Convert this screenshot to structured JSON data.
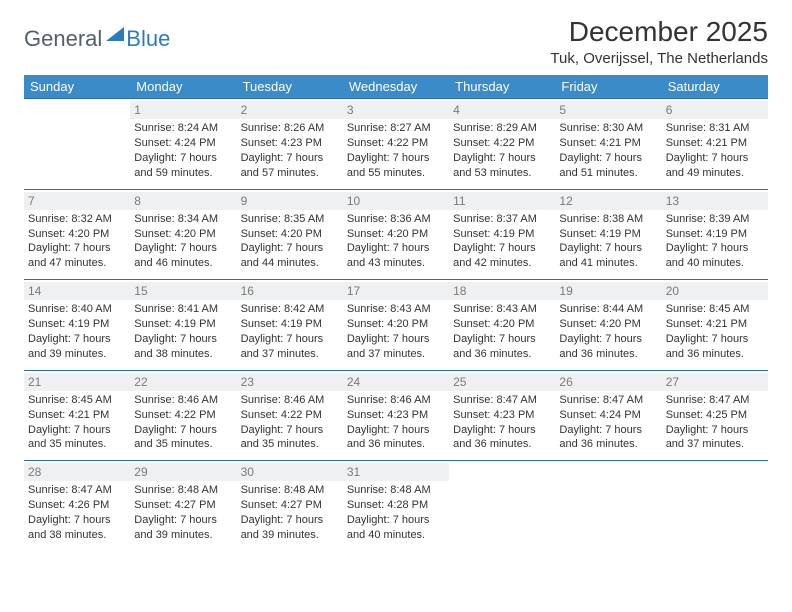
{
  "brand": {
    "part1": "General",
    "part2": "Blue"
  },
  "title": "December 2025",
  "location": "Tuk, Overijssel, The Netherlands",
  "day_headers": [
    "Sunday",
    "Monday",
    "Tuesday",
    "Wednesday",
    "Thursday",
    "Friday",
    "Saturday"
  ],
  "colors": {
    "header_bg": "#3b8bc9",
    "header_text": "#ffffff",
    "cell_border": "#2b6da8",
    "daynum_bg": "#eef0f2",
    "daynum_text": "#7a7a7a",
    "body_text": "#333333",
    "brand_gray": "#555f6a",
    "brand_blue": "#2b7bbf"
  },
  "weeks": [
    [
      null,
      {
        "n": "1",
        "sr": "Sunrise: 8:24 AM",
        "ss": "Sunset: 4:24 PM",
        "dl": "Daylight: 7 hours and 59 minutes."
      },
      {
        "n": "2",
        "sr": "Sunrise: 8:26 AM",
        "ss": "Sunset: 4:23 PM",
        "dl": "Daylight: 7 hours and 57 minutes."
      },
      {
        "n": "3",
        "sr": "Sunrise: 8:27 AM",
        "ss": "Sunset: 4:22 PM",
        "dl": "Daylight: 7 hours and 55 minutes."
      },
      {
        "n": "4",
        "sr": "Sunrise: 8:29 AM",
        "ss": "Sunset: 4:22 PM",
        "dl": "Daylight: 7 hours and 53 minutes."
      },
      {
        "n": "5",
        "sr": "Sunrise: 8:30 AM",
        "ss": "Sunset: 4:21 PM",
        "dl": "Daylight: 7 hours and 51 minutes."
      },
      {
        "n": "6",
        "sr": "Sunrise: 8:31 AM",
        "ss": "Sunset: 4:21 PM",
        "dl": "Daylight: 7 hours and 49 minutes."
      }
    ],
    [
      {
        "n": "7",
        "sr": "Sunrise: 8:32 AM",
        "ss": "Sunset: 4:20 PM",
        "dl": "Daylight: 7 hours and 47 minutes."
      },
      {
        "n": "8",
        "sr": "Sunrise: 8:34 AM",
        "ss": "Sunset: 4:20 PM",
        "dl": "Daylight: 7 hours and 46 minutes."
      },
      {
        "n": "9",
        "sr": "Sunrise: 8:35 AM",
        "ss": "Sunset: 4:20 PM",
        "dl": "Daylight: 7 hours and 44 minutes."
      },
      {
        "n": "10",
        "sr": "Sunrise: 8:36 AM",
        "ss": "Sunset: 4:20 PM",
        "dl": "Daylight: 7 hours and 43 minutes."
      },
      {
        "n": "11",
        "sr": "Sunrise: 8:37 AM",
        "ss": "Sunset: 4:19 PM",
        "dl": "Daylight: 7 hours and 42 minutes."
      },
      {
        "n": "12",
        "sr": "Sunrise: 8:38 AM",
        "ss": "Sunset: 4:19 PM",
        "dl": "Daylight: 7 hours and 41 minutes."
      },
      {
        "n": "13",
        "sr": "Sunrise: 8:39 AM",
        "ss": "Sunset: 4:19 PM",
        "dl": "Daylight: 7 hours and 40 minutes."
      }
    ],
    [
      {
        "n": "14",
        "sr": "Sunrise: 8:40 AM",
        "ss": "Sunset: 4:19 PM",
        "dl": "Daylight: 7 hours and 39 minutes."
      },
      {
        "n": "15",
        "sr": "Sunrise: 8:41 AM",
        "ss": "Sunset: 4:19 PM",
        "dl": "Daylight: 7 hours and 38 minutes."
      },
      {
        "n": "16",
        "sr": "Sunrise: 8:42 AM",
        "ss": "Sunset: 4:19 PM",
        "dl": "Daylight: 7 hours and 37 minutes."
      },
      {
        "n": "17",
        "sr": "Sunrise: 8:43 AM",
        "ss": "Sunset: 4:20 PM",
        "dl": "Daylight: 7 hours and 37 minutes."
      },
      {
        "n": "18",
        "sr": "Sunrise: 8:43 AM",
        "ss": "Sunset: 4:20 PM",
        "dl": "Daylight: 7 hours and 36 minutes."
      },
      {
        "n": "19",
        "sr": "Sunrise: 8:44 AM",
        "ss": "Sunset: 4:20 PM",
        "dl": "Daylight: 7 hours and 36 minutes."
      },
      {
        "n": "20",
        "sr": "Sunrise: 8:45 AM",
        "ss": "Sunset: 4:21 PM",
        "dl": "Daylight: 7 hours and 36 minutes."
      }
    ],
    [
      {
        "n": "21",
        "sr": "Sunrise: 8:45 AM",
        "ss": "Sunset: 4:21 PM",
        "dl": "Daylight: 7 hours and 35 minutes."
      },
      {
        "n": "22",
        "sr": "Sunrise: 8:46 AM",
        "ss": "Sunset: 4:22 PM",
        "dl": "Daylight: 7 hours and 35 minutes."
      },
      {
        "n": "23",
        "sr": "Sunrise: 8:46 AM",
        "ss": "Sunset: 4:22 PM",
        "dl": "Daylight: 7 hours and 35 minutes."
      },
      {
        "n": "24",
        "sr": "Sunrise: 8:46 AM",
        "ss": "Sunset: 4:23 PM",
        "dl": "Daylight: 7 hours and 36 minutes."
      },
      {
        "n": "25",
        "sr": "Sunrise: 8:47 AM",
        "ss": "Sunset: 4:23 PM",
        "dl": "Daylight: 7 hours and 36 minutes."
      },
      {
        "n": "26",
        "sr": "Sunrise: 8:47 AM",
        "ss": "Sunset: 4:24 PM",
        "dl": "Daylight: 7 hours and 36 minutes."
      },
      {
        "n": "27",
        "sr": "Sunrise: 8:47 AM",
        "ss": "Sunset: 4:25 PM",
        "dl": "Daylight: 7 hours and 37 minutes."
      }
    ],
    [
      {
        "n": "28",
        "sr": "Sunrise: 8:47 AM",
        "ss": "Sunset: 4:26 PM",
        "dl": "Daylight: 7 hours and 38 minutes."
      },
      {
        "n": "29",
        "sr": "Sunrise: 8:48 AM",
        "ss": "Sunset: 4:27 PM",
        "dl": "Daylight: 7 hours and 39 minutes."
      },
      {
        "n": "30",
        "sr": "Sunrise: 8:48 AM",
        "ss": "Sunset: 4:27 PM",
        "dl": "Daylight: 7 hours and 39 minutes."
      },
      {
        "n": "31",
        "sr": "Sunrise: 8:48 AM",
        "ss": "Sunset: 4:28 PM",
        "dl": "Daylight: 7 hours and 40 minutes."
      },
      null,
      null,
      null
    ]
  ]
}
